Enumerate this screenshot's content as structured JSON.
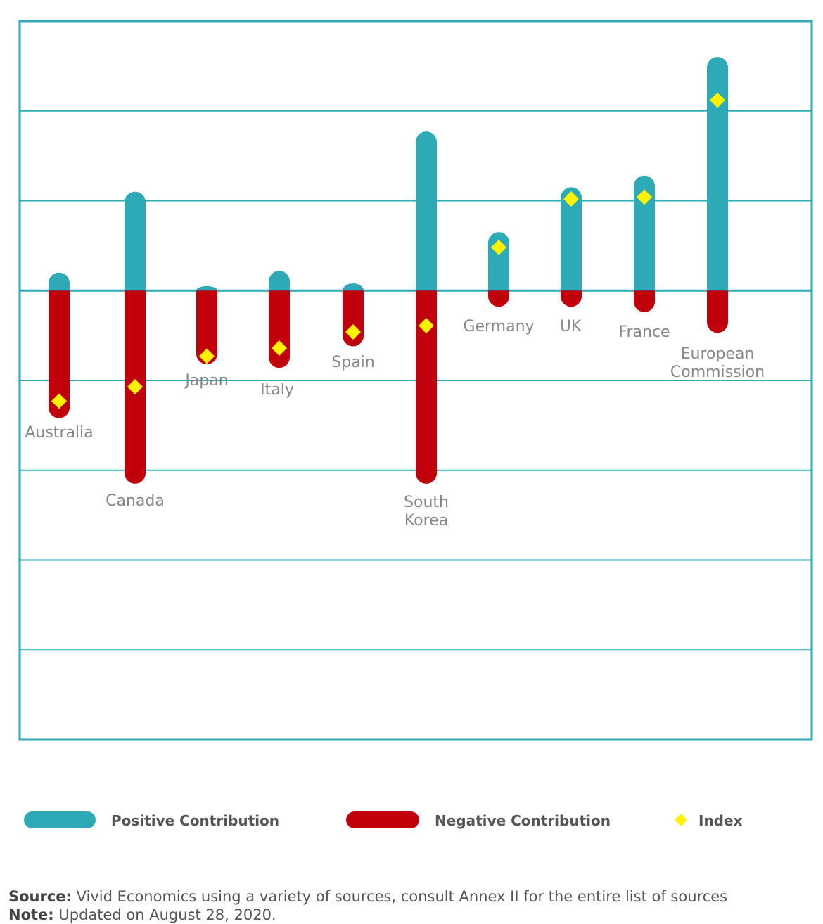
{
  "chart_data": {
    "type": "bar",
    "categories": [
      "Australia",
      "Canada",
      "Japan",
      "Italy",
      "Spain",
      "South Korea",
      "Germany",
      "UK",
      "France",
      "European Commission"
    ],
    "series": [
      {
        "name": "Positive Contribution",
        "values": [
          0.2,
          1.1,
          0.05,
          0.22,
          0.08,
          1.77,
          0.65,
          1.15,
          1.28,
          2.6
        ]
      },
      {
        "name": "Negative Contribution",
        "values": [
          -1.42,
          -2.15,
          -0.82,
          -0.86,
          -0.62,
          -2.15,
          -0.18,
          -0.18,
          -0.24,
          -0.47
        ]
      },
      {
        "name": "Index",
        "values": [
          -1.23,
          -1.07,
          -0.73,
          -0.64,
          -0.46,
          -0.39,
          0.48,
          1.02,
          1.04,
          2.12
        ]
      }
    ],
    "ylim": [
      -5,
      3
    ],
    "grid": true,
    "legend_position": "bottom",
    "colors": {
      "positive": "#2eaab6",
      "negative": "#c0000b",
      "index": "#fff200",
      "frame": "#2eaab6"
    }
  },
  "legend": {
    "positive": "Positive Contribution",
    "negative": "Negative Contribution",
    "index": "Index"
  },
  "footer": {
    "source_label": "Source:",
    "source_text": " Vivid Economics using a variety of sources, consult Annex II for the entire list of sources",
    "note_label": "Note:",
    "note_text": " Updated on August 28, 2020."
  }
}
